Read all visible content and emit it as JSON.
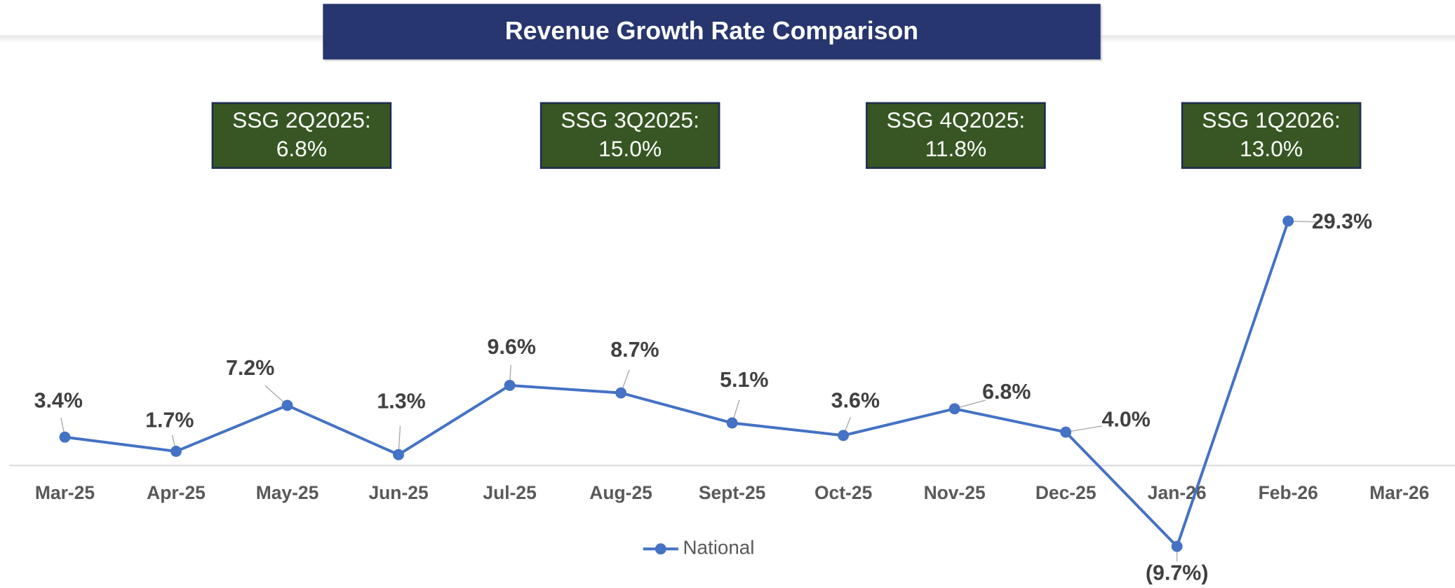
{
  "chart_data": {
    "type": "line",
    "title": "Revenue Growth Rate Comparison",
    "categories": [
      "Mar-25",
      "Apr-25",
      "May-25",
      "Jun-25",
      "Jul-25",
      "Aug-25",
      "Sept-25",
      "Oct-25",
      "Nov-25",
      "Dec-25",
      "Jan-26",
      "Feb-26",
      "Mar-26"
    ],
    "series": [
      {
        "name": "National",
        "color": "#4472c4",
        "values": [
          3.4,
          1.7,
          7.2,
          1.3,
          9.6,
          8.7,
          5.1,
          3.6,
          6.8,
          4.0,
          -9.7,
          29.3,
          null
        ],
        "value_labels": [
          "3.4%",
          "1.7%",
          "7.2%",
          "1.3%",
          "9.6%",
          "8.7%",
          "5.1%",
          "3.6%",
          "6.8%",
          "4.0%",
          "(9.7%)",
          "29.3%",
          null
        ]
      }
    ],
    "ylim": [
      -12,
      33
    ],
    "legend": "bottom",
    "annotations": [
      {
        "lines": [
          "SSG 2Q2025:",
          "6.8%"
        ]
      },
      {
        "lines": [
          "SSG 3Q2025:",
          "15.0%"
        ]
      },
      {
        "lines": [
          "SSG 4Q2025:",
          "11.8%"
        ]
      },
      {
        "lines": [
          "SSG 1Q2026:",
          "13.0%"
        ]
      }
    ]
  }
}
